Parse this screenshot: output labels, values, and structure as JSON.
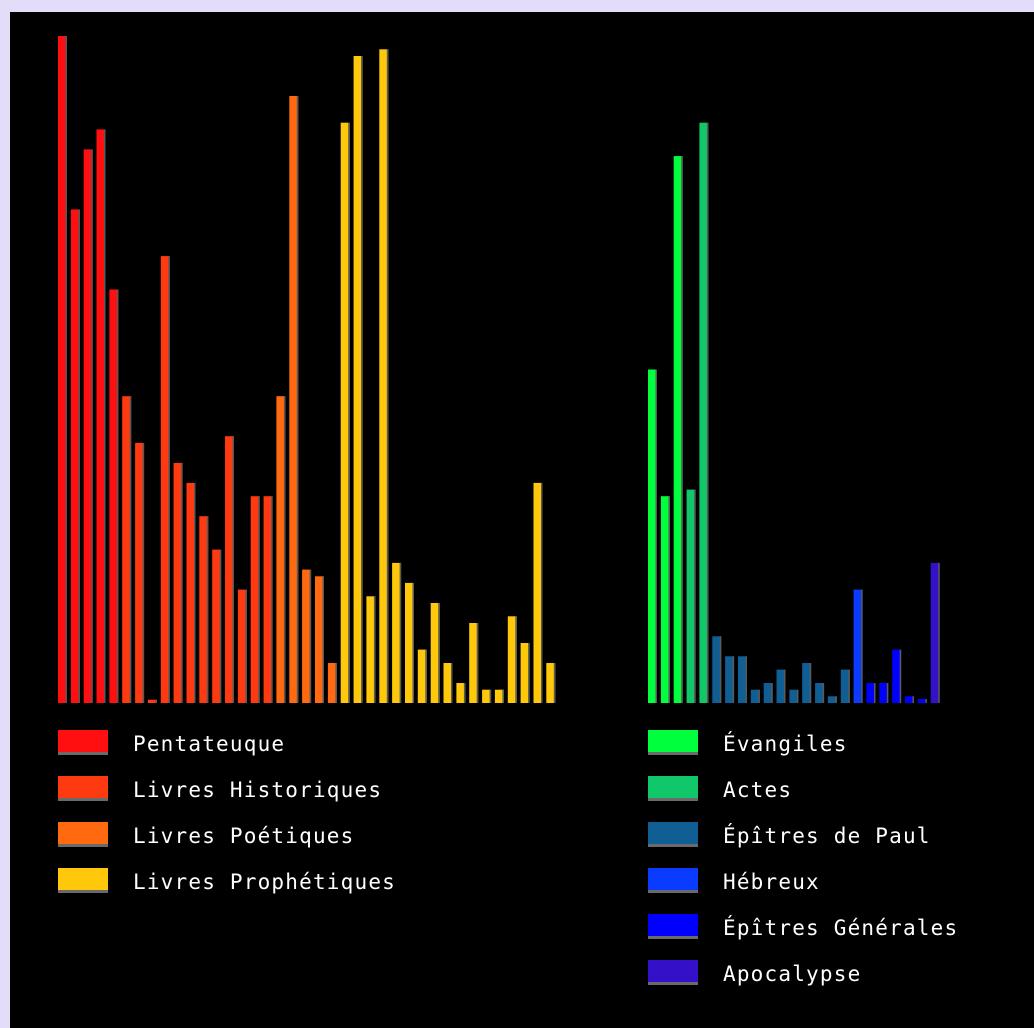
{
  "chart_data": {
    "type": "bar",
    "title": "",
    "xlabel": "",
    "ylabel": "",
    "grid": false,
    "legend_placement": "bottom",
    "ylim": [
      0,
      100
    ],
    "groups": [
      {
        "section": "old-testament",
        "series": [
          {
            "name": "Pentateuque",
            "color": "#ff0f0f",
            "values": [
              100,
              74,
              83,
              86,
              62
            ]
          },
          {
            "name": "Livres Historiques",
            "color": "#ff3a10",
            "values": [
              46,
              39,
              0.5,
              67,
              36,
              33,
              28,
              23,
              40,
              17,
              31,
              31
            ]
          },
          {
            "name": "Livres Poétiques",
            "color": "#ff6a10",
            "values": [
              46,
              91,
              20,
              19,
              6
            ]
          },
          {
            "name": "Livres Prophétiques",
            "color": "#ffc80a",
            "values": [
              87,
              97,
              16,
              98,
              21,
              18,
              8,
              15,
              6,
              3,
              12,
              2,
              2,
              13,
              9,
              33,
              6
            ]
          }
        ]
      },
      {
        "section": "new-testament",
        "series": [
          {
            "name": "Évangiles",
            "color": "#00ff3c",
            "values": [
              50,
              31,
              82
            ]
          },
          {
            "name": "Actes",
            "color": "#10c86a",
            "values": [
              32,
              87
            ]
          },
          {
            "name": "Épîtres de Paul",
            "color": "#105f94",
            "values": [
              10,
              7,
              7,
              2,
              3,
              5,
              2,
              6,
              3,
              1,
              5
            ]
          },
          {
            "name": "Hébreux",
            "color": "#0a3cff",
            "values": [
              17
            ]
          },
          {
            "name": "Épîtres Générales",
            "color": "#0000ff",
            "values": [
              3,
              3,
              8,
              1,
              0.6
            ]
          },
          {
            "name": "Apocalypse",
            "color": "#3410c8",
            "values": [
              21
            ]
          }
        ]
      }
    ]
  }
}
